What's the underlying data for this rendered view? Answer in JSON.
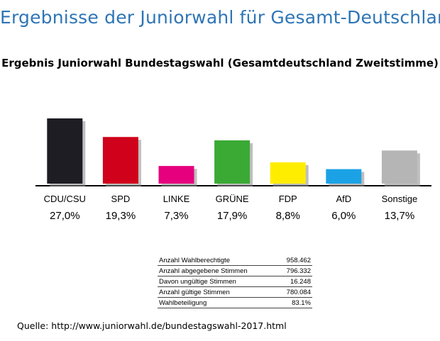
{
  "page_title": "Ergebnisse der Juniorwahl für Gesamt-Deutschland",
  "chart_data": {
    "type": "bar",
    "title": "Ergebnis Juniorwahl Bundestagswahl (Gesamtdeutschland Zweitstimme)",
    "categories": [
      "CDU/CSU",
      "SPD",
      "LINKE",
      "GRÜNE",
      "FDP",
      "AfD",
      "Sonstige"
    ],
    "values": [
      27.0,
      19.3,
      7.3,
      17.9,
      8.8,
      6.0,
      13.7
    ],
    "value_labels": [
      "27,0%",
      "19,3%",
      "7,3%",
      "17,9%",
      "8,8%",
      "6,0%",
      "13,7%"
    ],
    "colors": [
      "#1f1d24",
      "#d0021b",
      "#e6007e",
      "#3aaa35",
      "#ffed00",
      "#1ba2e6",
      "#b5b5b5"
    ],
    "ylim": [
      0,
      27.0
    ],
    "grid": false,
    "legend": "none"
  },
  "stats_table": [
    {
      "label": "Anzahl Wahlberechtigte",
      "value": "958.462"
    },
    {
      "label": "Anzahl abgegebene Stimmen",
      "value": "796.332"
    },
    {
      "label": "Davon ungültige Stimmen",
      "value": "16.248"
    },
    {
      "label": "Anzahl gültige Stimmen",
      "value": "780.084"
    },
    {
      "label": "Wahlbeteiligung",
      "value": "83.1%"
    }
  ],
  "source": "Quelle: http://www.juniorwahl.de/bundestagswahl-2017.html"
}
